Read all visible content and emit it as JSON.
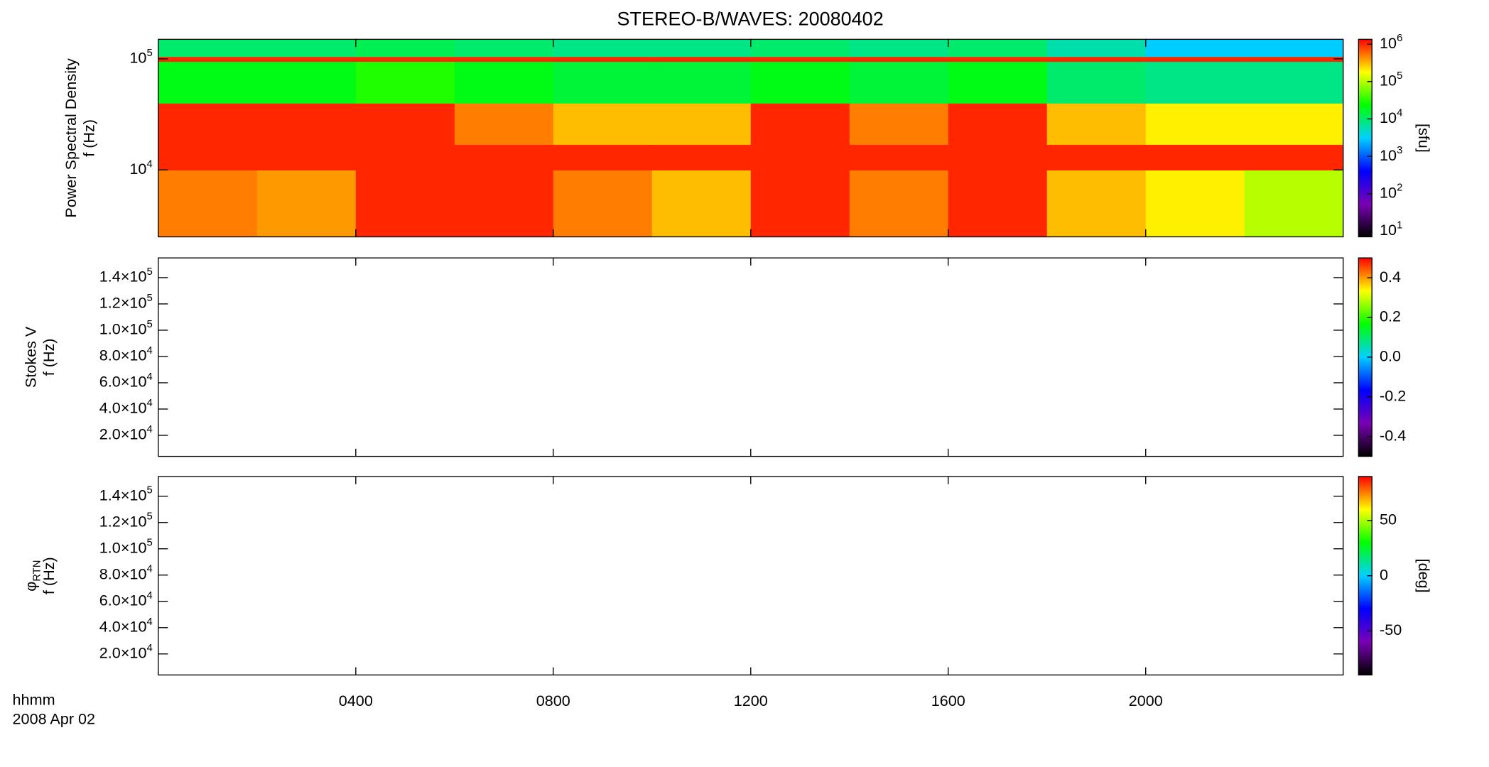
{
  "chart_data": [
    {
      "type": "heatmap",
      "title": "STEREO-B/WAVES: 20080402",
      "ylabel": [
        "Power Spectral Density",
        "f (Hz)"
      ],
      "yscale": "log",
      "ylim": [
        2500,
        150000
      ],
      "yticks": [
        {
          "value": 10000,
          "label": "10^4"
        },
        {
          "value": 100000,
          "label": "10^5"
        }
      ],
      "xlim": [
        0,
        24
      ],
      "time_edges": [
        0,
        2,
        4,
        6,
        8,
        10,
        12,
        14,
        16,
        18,
        20,
        22,
        24
      ],
      "freq_edges": [
        2500,
        10000,
        17000,
        40000,
        95000,
        105000,
        150000
      ],
      "z": [
        [
          500000,
          400000,
          1000000,
          1000000,
          500000,
          300000,
          1000000,
          500000,
          1000000,
          300000,
          200000,
          100000
        ],
        [
          1000000,
          1000000,
          1000000,
          1000000,
          1000000,
          1000000,
          1000000,
          1000000,
          1000000,
          1000000,
          1000000,
          1000000
        ],
        [
          1000000,
          1000000,
          1000000,
          500000,
          300000,
          300000,
          1000000,
          500000,
          1000000,
          300000,
          200000,
          200000
        ],
        [
          20000,
          20000,
          30000,
          20000,
          15000,
          15000,
          20000,
          15000,
          20000,
          10000,
          8000,
          8000
        ],
        [
          1000000,
          1000000,
          1000000,
          1000000,
          1000000,
          1000000,
          1000000,
          1000000,
          1000000,
          1000000,
          1000000,
          1000000
        ],
        [
          10000,
          10000,
          12000,
          10000,
          8000,
          8000,
          10000,
          8000,
          10000,
          6000,
          3000,
          3000
        ]
      ],
      "clabel": "[sfu]",
      "cscale": "log",
      "clim": [
        7,
        1350000
      ],
      "cticks": [
        {
          "value": 10,
          "label": "10^1"
        },
        {
          "value": 100,
          "label": "10^2"
        },
        {
          "value": 1000,
          "label": "10^3"
        },
        {
          "value": 10000,
          "label": "10^4"
        },
        {
          "value": 100000,
          "label": "10^5"
        },
        {
          "value": 1000000,
          "label": "10^6"
        }
      ],
      "colormap": [
        "#000000",
        "#7a00b4",
        "#0000ff",
        "#00d0ff",
        "#00ff00",
        "#ffff00",
        "#ff0000"
      ]
    },
    {
      "type": "heatmap",
      "ylabel": [
        "Stokes V",
        "f (Hz)"
      ],
      "ylim": [
        4000,
        155000
      ],
      "yticks": [
        {
          "value": 20000,
          "label": "2.0×10^4"
        },
        {
          "value": 40000,
          "label": "4.0×10^4"
        },
        {
          "value": 60000,
          "label": "6.0×10^4"
        },
        {
          "value": 80000,
          "label": "8.0×10^4"
        },
        {
          "value": 100000,
          "label": "1.0×10^5"
        },
        {
          "value": 120000,
          "label": "1.2×10^5"
        },
        {
          "value": 140000,
          "label": "1.4×10^5"
        }
      ],
      "xlim": [
        0,
        24
      ],
      "clim": [
        -0.5,
        0.5
      ],
      "cticks": [
        -0.4,
        -0.2,
        {
          "value": 0,
          "label": "0.0"
        },
        0.2,
        0.4
      ],
      "colormap": [
        "#000000",
        "#7a00b4",
        "#0000ff",
        "#00d0ff",
        "#00ff00",
        "#ffff00",
        "#ff0000"
      ]
    },
    {
      "type": "heatmap",
      "ylabel": [
        "φ_RTN",
        "f (Hz)"
      ],
      "ylim": [
        4000,
        155000
      ],
      "yticks": [
        {
          "value": 20000,
          "label": "2.0×10^4"
        },
        {
          "value": 40000,
          "label": "4.0×10^4"
        },
        {
          "value": 60000,
          "label": "6.0×10^4"
        },
        {
          "value": 80000,
          "label": "8.0×10^4"
        },
        {
          "value": 100000,
          "label": "1.0×10^5"
        },
        {
          "value": 120000,
          "label": "1.2×10^5"
        },
        {
          "value": 140000,
          "label": "1.4×10^5"
        }
      ],
      "xlim": [
        0,
        24
      ],
      "xticks": [
        {
          "value": 4,
          "label": "0400"
        },
        {
          "value": 8,
          "label": "0800"
        },
        {
          "value": 12,
          "label": "1200"
        },
        {
          "value": 16,
          "label": "1600"
        },
        {
          "value": 20,
          "label": "2000"
        }
      ],
      "xlabel": [
        "hhmm",
        "2008 Apr 02"
      ],
      "clabel": "[deg]",
      "clim": [
        -90,
        90
      ],
      "cticks": [
        -50,
        0,
        50
      ],
      "colormap": [
        "#000000",
        "#7a00b4",
        "#0000ff",
        "#00d0ff",
        "#00ff00",
        "#ffff00",
        "#ff0000"
      ]
    }
  ]
}
